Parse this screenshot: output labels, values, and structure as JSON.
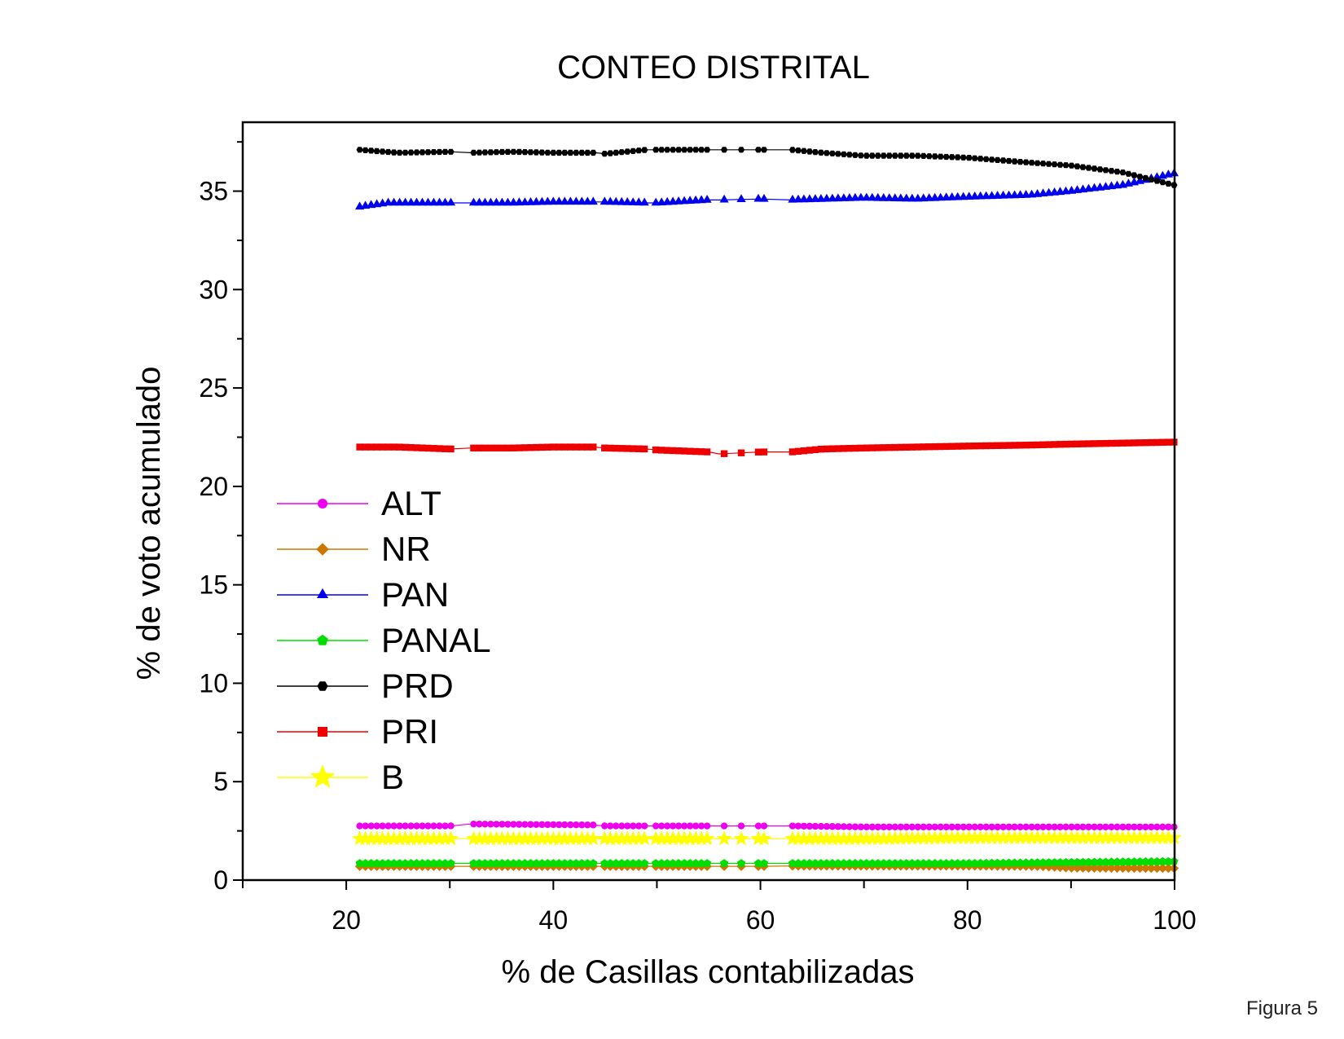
{
  "figure_label": "Figura 5",
  "chart_data": {
    "type": "line",
    "title": "CONTEO DISTRITAL",
    "xlabel": "% de Casillas contabilizadas",
    "ylabel": "% de voto acumulado",
    "xlim": [
      10,
      100
    ],
    "ylim": [
      0,
      38.5
    ],
    "xticks": [
      20,
      40,
      60,
      80,
      100
    ],
    "yticks": [
      0,
      5,
      10,
      15,
      20,
      25,
      30,
      35
    ],
    "grid": false,
    "legend_position": "left",
    "series": [
      {
        "name": "ALT",
        "color": "#ee00ee",
        "marker": "circle",
        "x": [
          21.3,
          30,
          32,
          44,
          45,
          49,
          50,
          55,
          56,
          60,
          63,
          70,
          80,
          90,
          100
        ],
        "y": [
          2.75,
          2.75,
          2.85,
          2.8,
          2.75,
          2.75,
          2.75,
          2.75,
          2.75,
          2.75,
          2.75,
          2.7,
          2.7,
          2.7,
          2.7
        ]
      },
      {
        "name": "NR",
        "color": "#cc7700",
        "marker": "diamond",
        "x": [
          21.3,
          30,
          32,
          44,
          45,
          49,
          50,
          55,
          56,
          60,
          63,
          70,
          80,
          87,
          90,
          100
        ],
        "y": [
          0.7,
          0.7,
          0.7,
          0.7,
          0.7,
          0.7,
          0.7,
          0.7,
          0.7,
          0.7,
          0.72,
          0.72,
          0.72,
          0.7,
          0.62,
          0.6
        ]
      },
      {
        "name": "PAN",
        "color": "#0000ee",
        "marker": "triangle",
        "x": [
          21.3,
          24,
          28,
          30,
          32,
          36,
          40,
          44,
          45,
          49,
          50,
          55,
          56,
          60,
          63,
          70,
          75,
          80,
          86,
          90,
          95,
          100
        ],
        "y": [
          34.2,
          34.4,
          34.4,
          34.4,
          34.4,
          34.4,
          34.45,
          34.45,
          34.45,
          34.4,
          34.4,
          34.55,
          34.55,
          34.6,
          34.55,
          34.65,
          34.6,
          34.7,
          34.8,
          35.0,
          35.3,
          35.9
        ]
      },
      {
        "name": "PANAL",
        "color": "#00dd00",
        "marker": "pentagon",
        "x": [
          21.3,
          30,
          32,
          44,
          45,
          49,
          50,
          55,
          56,
          60,
          63,
          70,
          80,
          90,
          100
        ],
        "y": [
          0.85,
          0.85,
          0.85,
          0.85,
          0.85,
          0.85,
          0.85,
          0.85,
          0.85,
          0.85,
          0.85,
          0.85,
          0.85,
          0.9,
          0.95
        ]
      },
      {
        "name": "PRD",
        "color": "#000000",
        "marker": "hexagon",
        "x": [
          21.3,
          25,
          30,
          32,
          36,
          40,
          44,
          45,
          49,
          50,
          55,
          56,
          60,
          63,
          66,
          70,
          75,
          80,
          86,
          90,
          95,
          100
        ],
        "y": [
          37.1,
          36.95,
          37.0,
          36.95,
          37.0,
          36.95,
          36.95,
          36.9,
          37.1,
          37.1,
          37.1,
          37.1,
          37.1,
          37.1,
          36.95,
          36.8,
          36.8,
          36.7,
          36.45,
          36.3,
          35.95,
          35.3
        ]
      },
      {
        "name": "PRI",
        "color": "#ee0000",
        "marker": "square",
        "x": [
          21.3,
          25,
          30,
          32,
          36,
          40,
          44,
          45,
          49,
          50,
          55,
          56,
          58,
          60,
          63,
          66,
          70,
          75,
          80,
          86,
          90,
          95,
          100
        ],
        "y": [
          22.0,
          22.0,
          21.9,
          21.95,
          21.95,
          22.0,
          22.0,
          21.95,
          21.9,
          21.85,
          21.75,
          21.65,
          21.7,
          21.75,
          21.75,
          21.9,
          21.95,
          22.0,
          22.05,
          22.1,
          22.15,
          22.2,
          22.25
        ]
      },
      {
        "name": "B",
        "color": "#ffff00",
        "marker": "star",
        "x": [
          21.3,
          30,
          32,
          44,
          45,
          49,
          50,
          55,
          56,
          60,
          63,
          70,
          80,
          90,
          100
        ],
        "y": [
          2.1,
          2.1,
          2.1,
          2.1,
          2.1,
          2.1,
          2.1,
          2.1,
          2.1,
          2.1,
          2.1,
          2.1,
          2.15,
          2.15,
          2.15
        ]
      }
    ]
  }
}
